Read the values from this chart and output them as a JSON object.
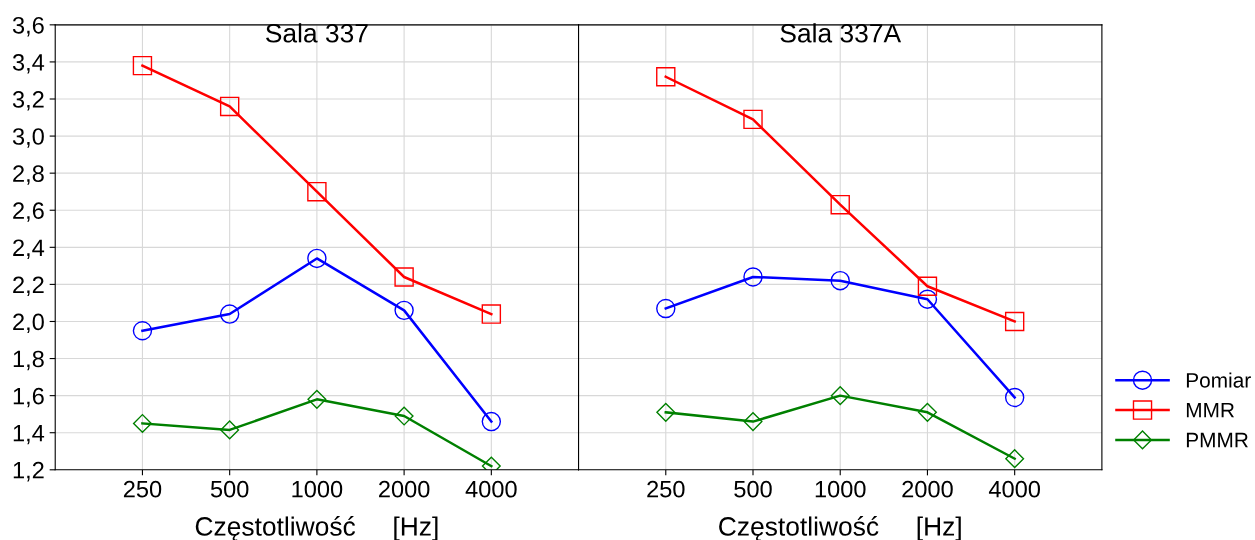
{
  "chart_data": [
    {
      "type": "line",
      "title": "Sala 337",
      "xlabel": "Częstotliwość     [Hz]",
      "categories": [
        "250",
        "500",
        "1000",
        "2000",
        "4000"
      ],
      "ylim": [
        1.2,
        3.6
      ],
      "yticks": [
        {
          "value": 1.2,
          "label": "1,2"
        },
        {
          "value": 1.4,
          "label": "1,4"
        },
        {
          "value": 1.6,
          "label": "1,6"
        },
        {
          "value": 1.8,
          "label": "1,8"
        },
        {
          "value": 2.0,
          "label": "2,0"
        },
        {
          "value": 2.2,
          "label": "2,2"
        },
        {
          "value": 2.4,
          "label": "2,4"
        },
        {
          "value": 2.6,
          "label": "2,6"
        },
        {
          "value": 2.8,
          "label": "2,8"
        },
        {
          "value": 3.0,
          "label": "3,0"
        },
        {
          "value": 3.2,
          "label": "3,2"
        },
        {
          "value": 3.4,
          "label": "3,4"
        },
        {
          "value": 3.6,
          "label": "3,6"
        }
      ],
      "grid": true,
      "series": [
        {
          "color": "#0000ff",
          "marker": "circle",
          "values": [
            1.95,
            2.04,
            2.34,
            2.06,
            1.46
          ]
        },
        {
          "color": "#ff0000",
          "marker": "square",
          "values": [
            3.38,
            3.16,
            2.7,
            2.24,
            2.04
          ]
        },
        {
          "color": "#008000",
          "marker": "diamond",
          "values": [
            1.45,
            1.415,
            1.58,
            1.49,
            1.22
          ]
        }
      ]
    },
    {
      "type": "line",
      "title": "Sala 337A",
      "xlabel": "Częstotliwość     [Hz]",
      "categories": [
        "250",
        "500",
        "1000",
        "2000",
        "4000"
      ],
      "ylim": [
        1.2,
        3.6
      ],
      "tick_labels": "x",
      "grid": true,
      "legend": "right",
      "series": [
        {
          "name": "Pomiar",
          "color": "#0000ff",
          "marker": "circle",
          "values": [
            2.07,
            2.24,
            2.22,
            2.12,
            1.59
          ]
        },
        {
          "name": "MMR",
          "color": "#ff0000",
          "marker": "square",
          "values": [
            3.32,
            3.09,
            2.63,
            2.19,
            2.0
          ]
        },
        {
          "name": "PMMR",
          "color": "#008000",
          "marker": "diamond",
          "values": [
            1.51,
            1.46,
            1.6,
            1.51,
            1.26
          ]
        }
      ]
    }
  ]
}
